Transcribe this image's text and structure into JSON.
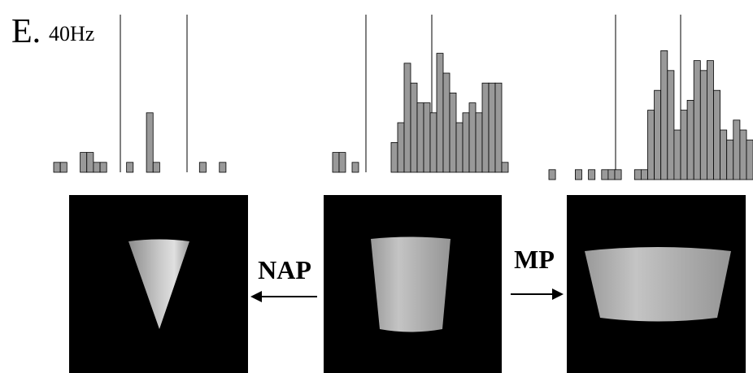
{
  "panel_label": "E.",
  "frequency": "40Hz",
  "chart_data": [
    {
      "type": "bar",
      "color": "#999999",
      "values": [
        1,
        1,
        0,
        0,
        2,
        2,
        1,
        1,
        0,
        0,
        0,
        1,
        0,
        0,
        6,
        1,
        0,
        0,
        0,
        0,
        0,
        0,
        1,
        0,
        0,
        1
      ]
    },
    {
      "type": "bar",
      "color": "#999999",
      "values": [
        2,
        2,
        0,
        1,
        0,
        0,
        0,
        0,
        0,
        3,
        5,
        11,
        9,
        7,
        7,
        6,
        12,
        10,
        8,
        5,
        6,
        7,
        6,
        9,
        9,
        9,
        1
      ]
    },
    {
      "type": "bar",
      "color": "#999999",
      "values": [
        1,
        0,
        0,
        0,
        1,
        0,
        1,
        0,
        1,
        1,
        1,
        0,
        0,
        1,
        1,
        7,
        9,
        13,
        11,
        5,
        7,
        8,
        12,
        11,
        12,
        9,
        5,
        4,
        6,
        5,
        4
      ]
    }
  ],
  "transforms": {
    "left": "NAP",
    "right": "MP"
  }
}
